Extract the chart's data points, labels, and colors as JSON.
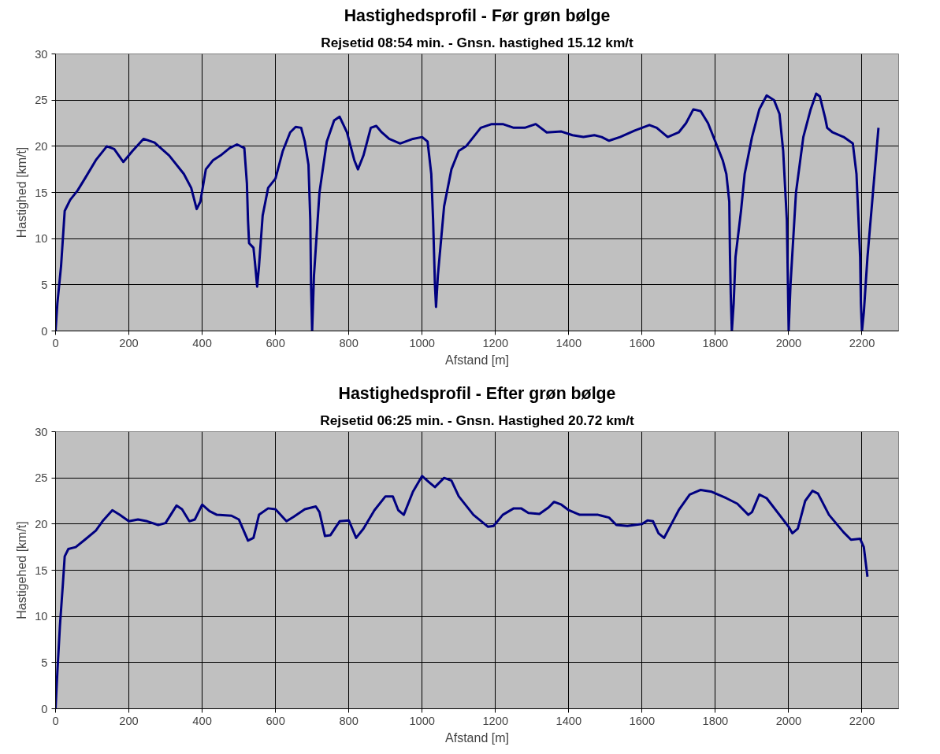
{
  "chart_data": [
    {
      "type": "line",
      "title": "Hastighedsprofil - Før grøn bølge",
      "subtitle": "Rejsetid 08:54 min. - Gnsn. hastighed 15.12 km/t",
      "xlabel": "Afstand [m]",
      "ylabel": "Hastighed [km/t]",
      "xlim": [
        0,
        2300
      ],
      "xticks": [
        0,
        200,
        400,
        600,
        800,
        1000,
        1200,
        1400,
        1600,
        1800,
        2000,
        2200
      ],
      "ylim": [
        0,
        30
      ],
      "yticks": [
        0,
        5,
        10,
        15,
        20,
        25,
        30
      ],
      "grid": true,
      "marker": "none",
      "line_style": "solid",
      "series": [
        {
          "color": "#000080",
          "x": [
            0,
            5,
            15,
            25,
            40,
            60,
            80,
            110,
            140,
            160,
            185,
            210,
            240,
            270,
            310,
            350,
            370,
            385,
            395,
            410,
            430,
            450,
            475,
            495,
            515,
            522,
            525,
            528,
            540,
            545,
            550,
            555,
            565,
            580,
            600,
            620,
            640,
            655,
            670,
            680,
            690,
            695,
            697,
            700,
            705,
            720,
            740,
            760,
            775,
            795,
            815,
            825,
            840,
            860,
            875,
            890,
            910,
            940,
            975,
            1000,
            1015,
            1025,
            1030,
            1035,
            1038,
            1043,
            1060,
            1080,
            1100,
            1120,
            1140,
            1160,
            1190,
            1220,
            1250,
            1280,
            1310,
            1340,
            1380,
            1410,
            1440,
            1470,
            1490,
            1510,
            1540,
            1580,
            1620,
            1640,
            1670,
            1700,
            1720,
            1740,
            1760,
            1780,
            1800,
            1820,
            1830,
            1838,
            1840,
            1842,
            1845,
            1850,
            1855,
            1870,
            1880,
            1900,
            1920,
            1940,
            1960,
            1975,
            1985,
            1995,
            1998,
            2000,
            2005,
            2020,
            2040,
            2060,
            2075,
            2085,
            2100,
            2105,
            2120,
            2150,
            2175,
            2185,
            2195,
            2197,
            2200,
            2205,
            2215,
            2245
          ],
          "values": [
            0,
            3,
            7,
            13,
            14.2,
            15.2,
            16.5,
            18.5,
            20,
            19.7,
            18.3,
            19.5,
            20.8,
            20.4,
            19,
            17,
            15.5,
            13.2,
            14,
            17.5,
            18.5,
            19,
            19.8,
            20.2,
            19.8,
            16,
            12,
            9.5,
            9,
            7,
            4.8,
            7,
            12.5,
            15.5,
            16.5,
            19.5,
            21.5,
            22.1,
            22,
            20.5,
            18,
            12,
            5,
            0,
            6,
            15,
            20.5,
            22.8,
            23.2,
            21.5,
            18.5,
            17.5,
            19,
            22,
            22.2,
            21.5,
            20.8,
            20.3,
            20.8,
            21,
            20.5,
            17,
            12,
            5,
            2.6,
            6,
            13.5,
            17.5,
            19.5,
            20,
            21,
            22,
            22.4,
            22.4,
            22,
            22,
            22.4,
            21.5,
            21.6,
            21.2,
            21,
            21.2,
            21,
            20.6,
            21,
            21.7,
            22.3,
            22,
            21,
            21.5,
            22.5,
            24,
            23.8,
            22.5,
            20.5,
            18.5,
            17,
            14,
            8,
            4,
            0,
            3,
            8,
            13,
            17,
            21,
            24,
            25.5,
            25,
            23.5,
            19.5,
            12,
            5,
            0,
            5,
            15,
            21,
            24,
            25.7,
            25.4,
            23,
            22,
            21.5,
            21,
            20.3,
            17,
            8,
            3,
            0,
            2,
            8,
            22
          ]
        }
      ]
    },
    {
      "type": "line",
      "title": "Hastighedsprofil - Efter grøn bølge",
      "subtitle": "Rejsetid 06:25 min. - Gnsn. Hastighed 20.72 km/t",
      "xlabel": "Afstand [m]",
      "ylabel": "Hastigehed [km/t]",
      "xlim": [
        0,
        2300
      ],
      "xticks": [
        0,
        200,
        400,
        600,
        800,
        1000,
        1200,
        1400,
        1600,
        1800,
        2000,
        2200
      ],
      "ylim": [
        0,
        30
      ],
      "yticks": [
        0,
        5,
        10,
        15,
        20,
        25,
        30
      ],
      "grid": true,
      "marker": "none",
      "line_style": "solid",
      "series": [
        {
          "color": "#000080",
          "x": [
            0,
            5,
            12,
            20,
            25,
            35,
            55,
            80,
            110,
            130,
            155,
            175,
            200,
            225,
            250,
            280,
            300,
            330,
            345,
            365,
            380,
            400,
            420,
            440,
            480,
            500,
            525,
            540,
            555,
            580,
            600,
            630,
            650,
            680,
            710,
            720,
            735,
            750,
            775,
            800,
            820,
            840,
            870,
            900,
            920,
            935,
            950,
            975,
            1000,
            1020,
            1035,
            1060,
            1080,
            1100,
            1140,
            1180,
            1195,
            1220,
            1250,
            1270,
            1290,
            1320,
            1345,
            1360,
            1380,
            1400,
            1430,
            1480,
            1510,
            1530,
            1560,
            1600,
            1615,
            1630,
            1645,
            1660,
            1680,
            1700,
            1730,
            1760,
            1790,
            1830,
            1860,
            1890,
            1900,
            1920,
            1940,
            2000,
            2010,
            2025,
            2045,
            2065,
            2080,
            2110,
            2150,
            2170,
            2195,
            2205,
            2215
          ],
          "values": [
            0,
            4,
            9,
            13.5,
            16.5,
            17.3,
            17.5,
            18.3,
            19.3,
            20.4,
            21.5,
            21,
            20.3,
            20.5,
            20.3,
            19.9,
            20.1,
            22,
            21.6,
            20.3,
            20.5,
            22.1,
            21.4,
            21,
            20.9,
            20.5,
            18.2,
            18.5,
            21,
            21.7,
            21.6,
            20.3,
            20.8,
            21.6,
            21.9,
            21.3,
            18.7,
            18.8,
            20.3,
            20.4,
            18.5,
            19.5,
            21.5,
            23,
            23,
            21.5,
            21,
            23.5,
            25.2,
            24.5,
            24,
            25,
            24.7,
            23,
            21,
            19.7,
            19.8,
            21,
            21.7,
            21.7,
            21.2,
            21.1,
            21.8,
            22.4,
            22.1,
            21.5,
            21,
            21,
            20.7,
            19.9,
            19.8,
            20,
            20.4,
            20.3,
            19,
            18.5,
            20,
            21.5,
            23.2,
            23.7,
            23.5,
            22.8,
            22.2,
            21,
            21.3,
            23.2,
            22.8,
            19.7,
            19,
            19.5,
            22.5,
            23.6,
            23.3,
            21,
            19.1,
            18.3,
            18.4,
            17.5,
            14.3
          ]
        }
      ]
    }
  ]
}
